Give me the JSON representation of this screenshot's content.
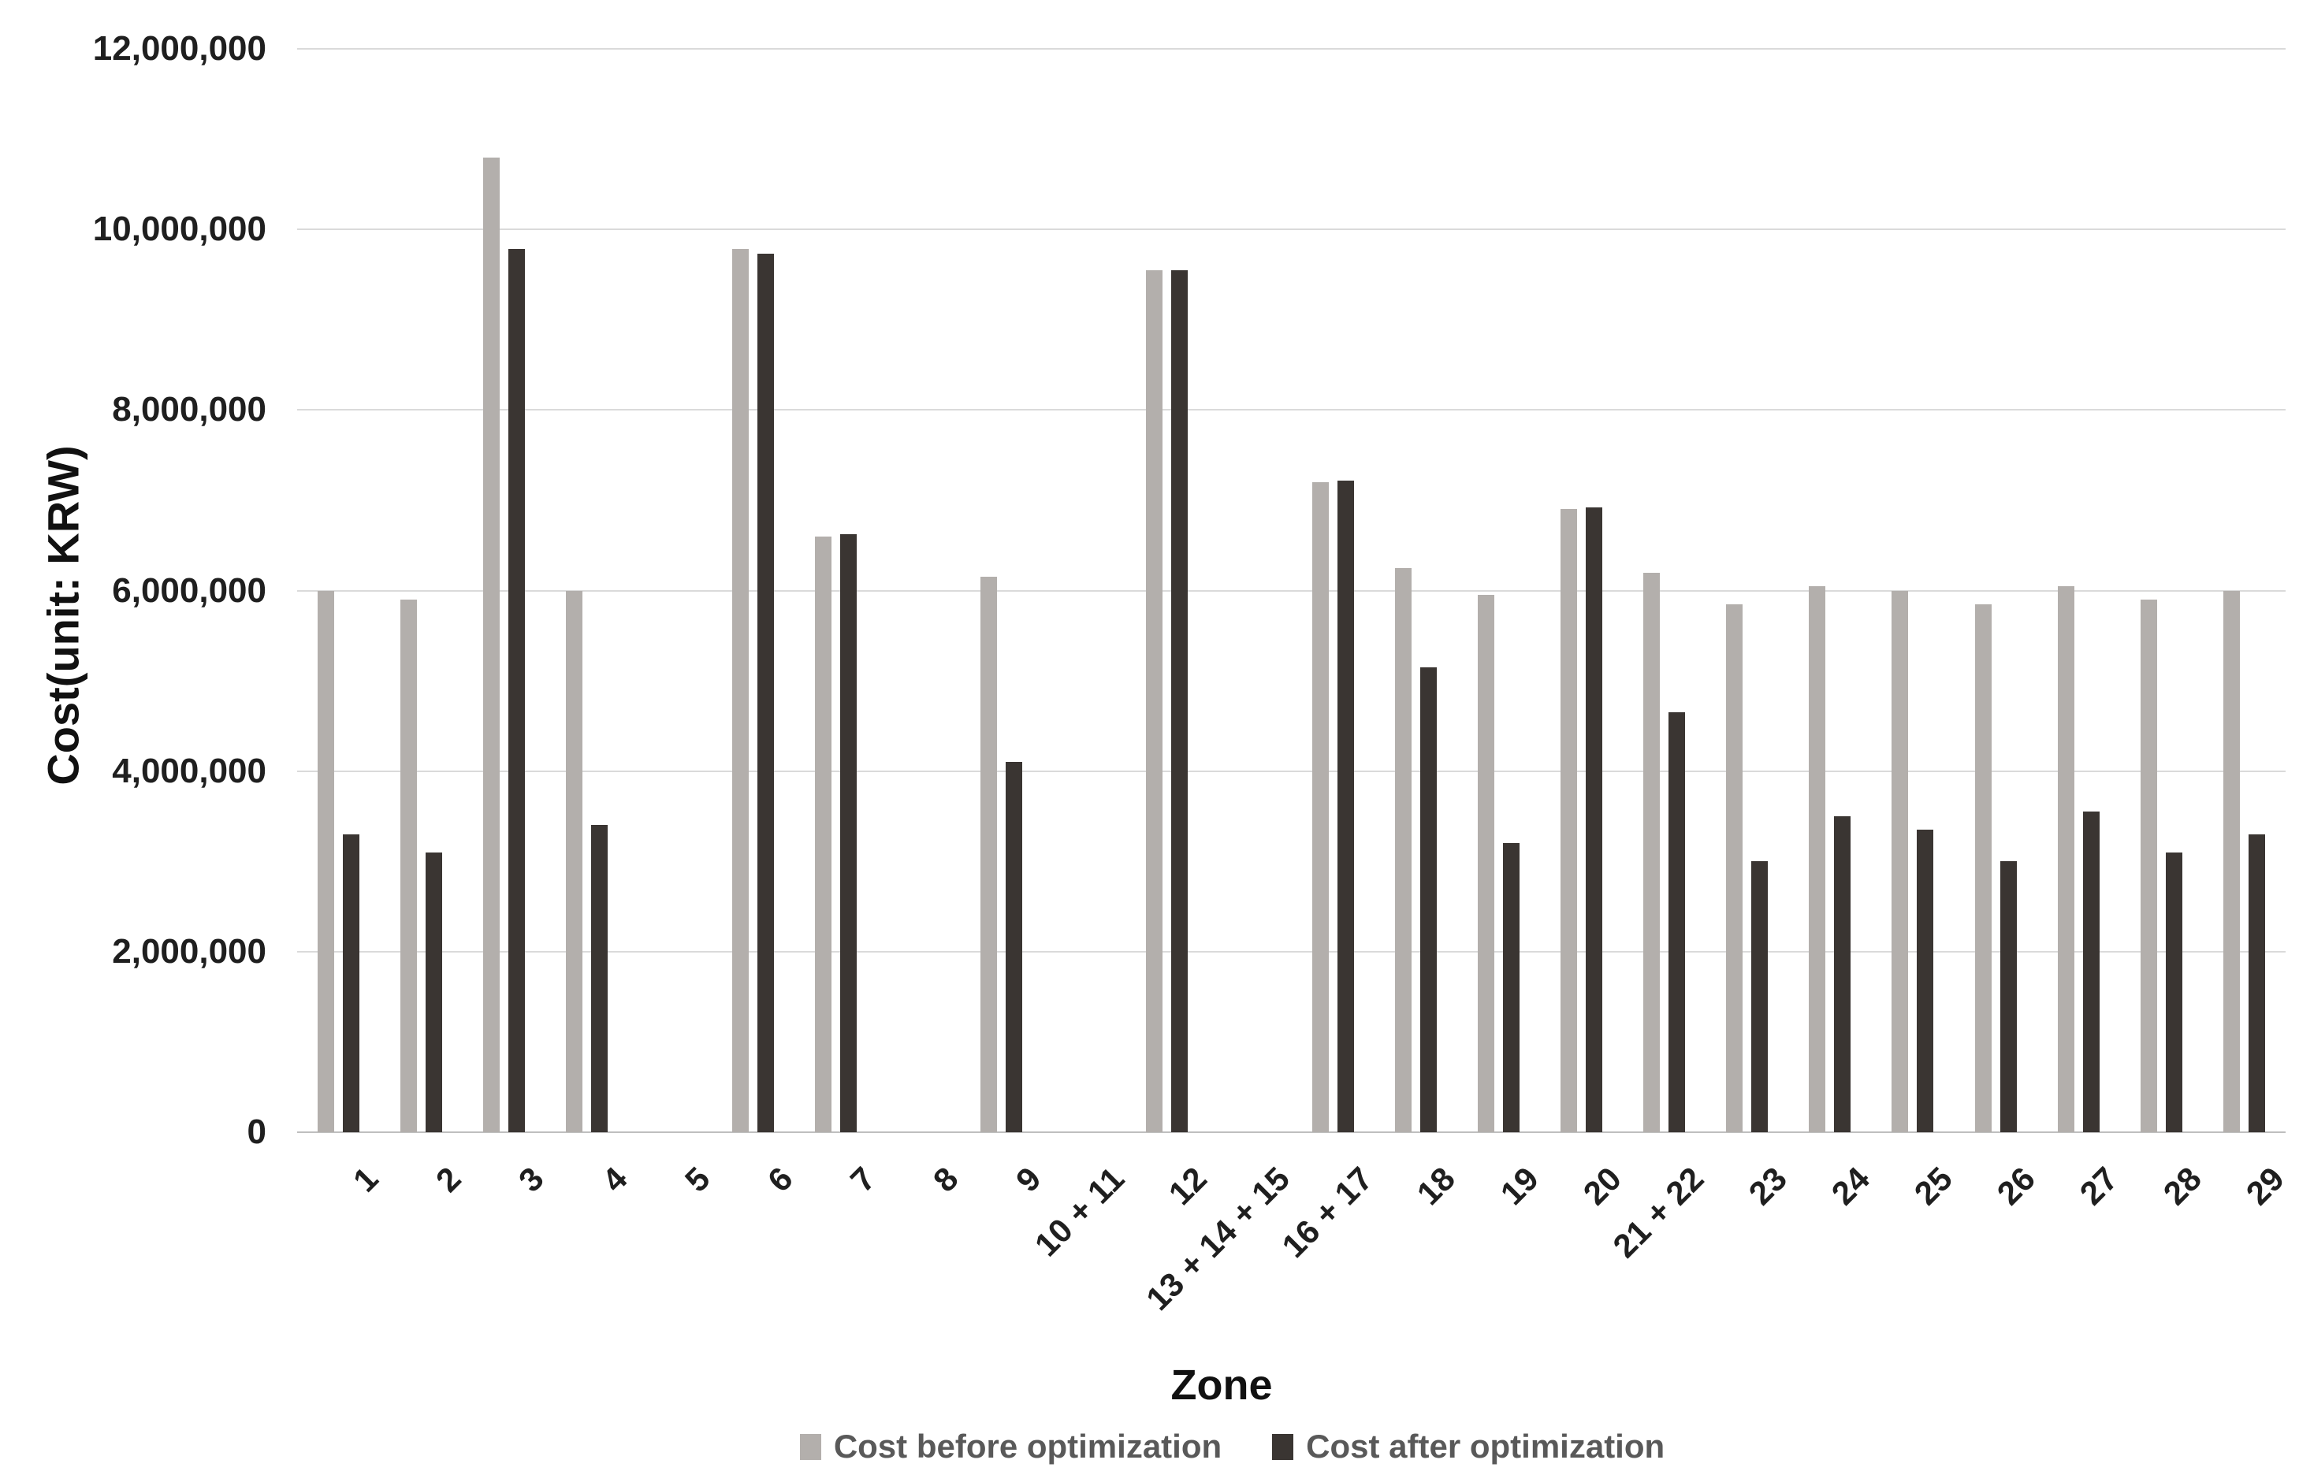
{
  "chart_data": {
    "type": "bar",
    "title": "",
    "xlabel": "Zone",
    "ylabel": "Cost(unit: KRW)",
    "ylim": [
      0,
      12000000
    ],
    "ytick_interval": 2000000,
    "yticks": [
      {
        "value": 0,
        "label": "0"
      },
      {
        "value": 2000000,
        "label": "2,000,000"
      },
      {
        "value": 4000000,
        "label": "4,000,000"
      },
      {
        "value": 6000000,
        "label": "6,000,000"
      },
      {
        "value": 8000000,
        "label": "8,000,000"
      },
      {
        "value": 10000000,
        "label": "10,000,000"
      },
      {
        "value": 12000000,
        "label": "12,000,000"
      }
    ],
    "grid": "horizontal",
    "legend_position": "bottom-center",
    "categories": [
      "1",
      "2",
      "3",
      "4",
      "5",
      "6",
      "7",
      "8",
      "9",
      "10 + 11",
      "12",
      "13 + 14 + 15",
      "16 + 17",
      "18",
      "19",
      "20",
      "21 + 22",
      "23",
      "24",
      "25",
      "26",
      "27",
      "28",
      "29"
    ],
    "series": [
      {
        "name": "Cost before optimization",
        "color": "#b3afac",
        "values": [
          6000000,
          5900000,
          10800000,
          6000000,
          0,
          9780000,
          6600000,
          0,
          6150000,
          0,
          9550000,
          0,
          7200000,
          6250000,
          5950000,
          6900000,
          6200000,
          5850000,
          6050000,
          6000000,
          5850000,
          6050000,
          5900000,
          6000000
        ]
      },
      {
        "name": "Cost after optimization",
        "color": "#3a3532",
        "values": [
          3300000,
          3100000,
          9780000,
          3400000,
          0,
          9730000,
          6620000,
          0,
          4100000,
          0,
          9550000,
          0,
          7220000,
          5150000,
          3200000,
          6920000,
          4650000,
          3000000,
          3500000,
          3350000,
          3000000,
          3550000,
          3100000,
          3300000
        ]
      }
    ],
    "colors": {
      "gridline": "#dadada",
      "axis_line": "#bfbfbf",
      "tick_text": "#1f1f1f",
      "legend_text": "#595959",
      "background": "#ffffff"
    }
  }
}
